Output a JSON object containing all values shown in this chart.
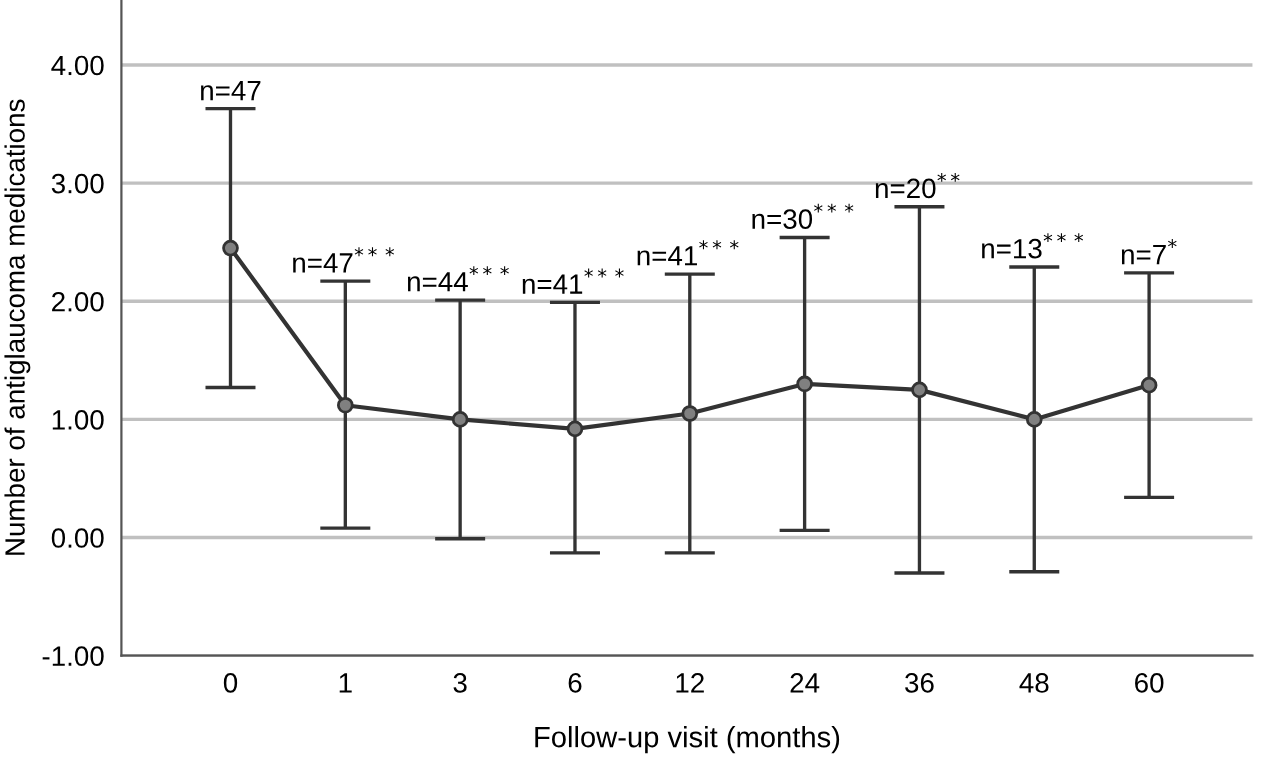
{
  "chart_data": {
    "type": "line",
    "xlabel": "Follow-up visit (months)",
    "ylabel": "Number of antiglaucoma medications",
    "categories": [
      "0",
      "1",
      "3",
      "6",
      "12",
      "24",
      "36",
      "48",
      "60"
    ],
    "series": [
      {
        "color": "#333333",
        "values": [
          2.45,
          1.12,
          1.0,
          0.92,
          1.05,
          1.3,
          1.25,
          1.0,
          1.29
        ],
        "errors": [
          [
            1.27,
            3.63
          ],
          [
            0.08,
            2.17
          ],
          [
            -0.01,
            2.01
          ],
          [
            -0.13,
            1.99
          ],
          [
            -0.13,
            2.23
          ],
          [
            0.06,
            2.54
          ],
          [
            -0.3,
            2.8
          ],
          [
            -0.29,
            2.29
          ],
          [
            0.34,
            2.24
          ]
        ]
      }
    ],
    "ylim": [
      -1,
      4.55
    ],
    "yticks": [
      {
        "value": -1,
        "label": "-1.00"
      },
      {
        "value": 0,
        "label": "0.00"
      },
      {
        "value": 1,
        "label": "1.00"
      },
      {
        "value": 2,
        "label": "2.00"
      },
      {
        "value": 3,
        "label": "3.00"
      },
      {
        "value": 4,
        "label": "4.00"
      }
    ],
    "grid": "y",
    "marker": "circle",
    "line_style": "solid",
    "annotations": [
      {
        "text": "n=47",
        "x": "0",
        "y": 3.63
      },
      {
        "text": "n=47$^{***}$",
        "x": "1",
        "y": 2.17
      },
      {
        "text": "n=44$^{***}$",
        "x": "3",
        "y": 2.01
      },
      {
        "text": "n=41$^{***}$",
        "x": "6",
        "y": 1.99
      },
      {
        "text": "n=41$^{***}$",
        "x": "12",
        "y": 2.23
      },
      {
        "text": "n=30$^{***}$",
        "x": "24",
        "y": 2.54
      },
      {
        "text": "n=20$^{**}$",
        "x": "36",
        "y": 2.8
      },
      {
        "text": "n=13$^{***}$",
        "x": "48",
        "y": 2.29
      },
      {
        "text": "n=7$^{*}$",
        "x": "60",
        "y": 2.24
      }
    ]
  }
}
